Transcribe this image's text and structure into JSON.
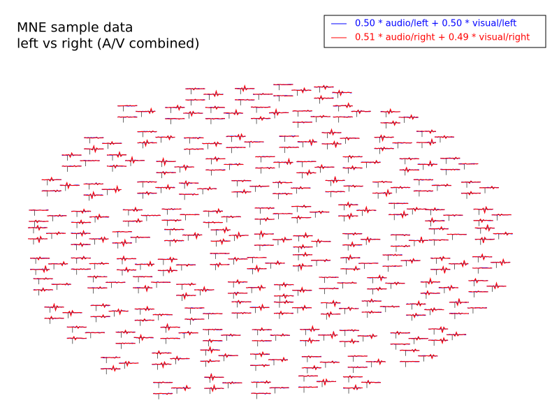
{
  "chart_data": {
    "type": "topo",
    "title_lines": [
      "MNE sample data",
      "left vs right (A/V combined)"
    ],
    "series": [
      {
        "name": "0.50 * audio/left + 0.50 * visual/left",
        "color": "#0000ff"
      },
      {
        "name": "0.51 * audio/right + 0.49 * visual/right",
        "color": "#ff0000"
      }
    ],
    "legend": "upper right"
  }
}
